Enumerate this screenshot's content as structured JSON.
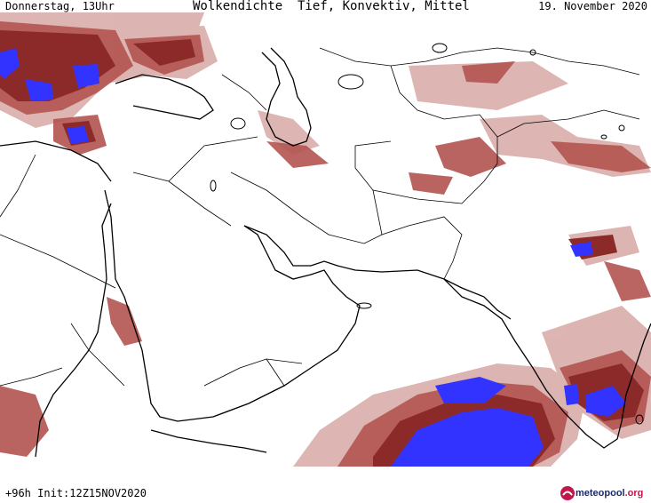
{
  "header": {
    "left": "Donnerstag, 13Uhr",
    "center": "Wolkendichte  Tief, Konvektiv, Mittel",
    "right": "19. November 2020"
  },
  "footer": {
    "left": "+96h Init:12Z15NOV2020",
    "logo_brand": "meteopool",
    "logo_tld": ".org"
  },
  "colors": {
    "background": "#ffffff",
    "coastline": "#000000",
    "cloud_light": "#d7a8a4",
    "cloud_medium": "#b25450",
    "cloud_dense": "#8c2a2a",
    "cloud_very_dense": "#3333ff"
  },
  "icons": [
    "meteopool-logo-icon"
  ]
}
